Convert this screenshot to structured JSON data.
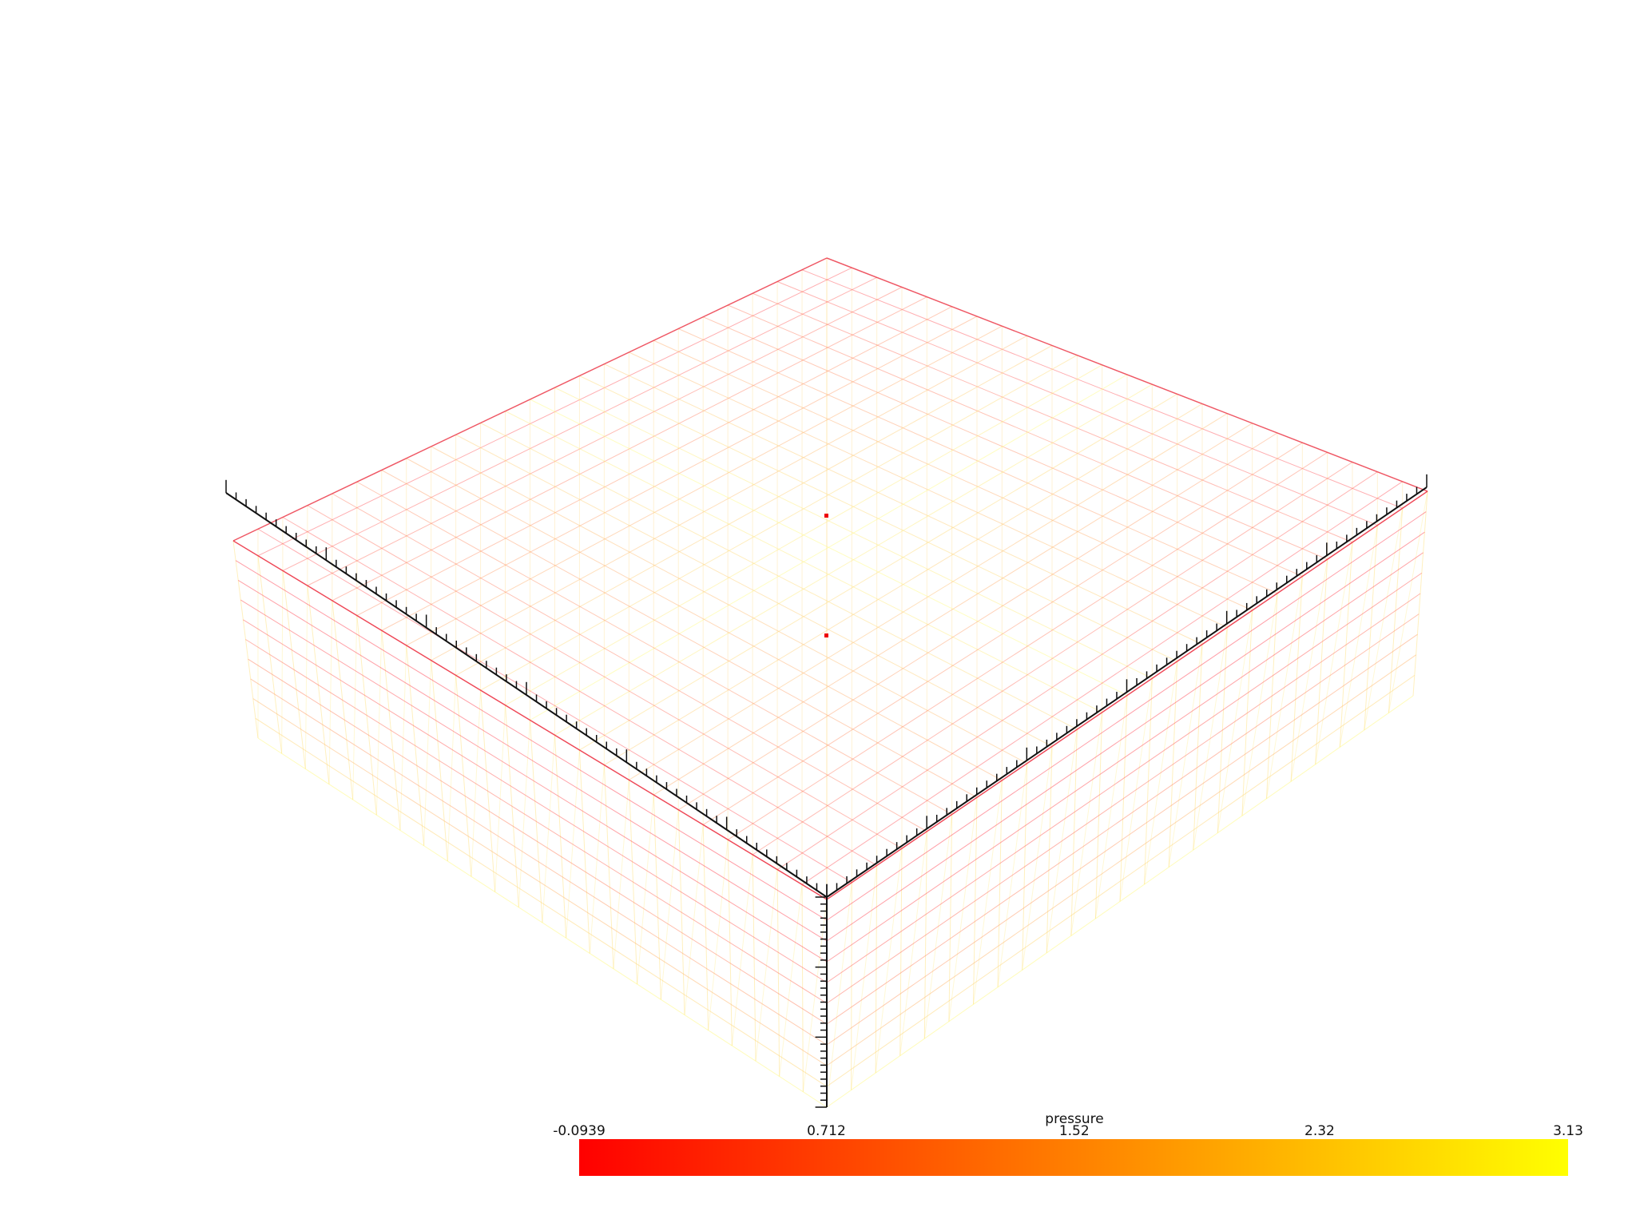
{
  "colorbar": {
    "title": "pressure",
    "range": [
      -0.0939,
      3.13
    ],
    "ticks": [
      -0.0939,
      0.712,
      1.52,
      2.32,
      3.13
    ],
    "colors": [
      "#ff0000",
      "#ffff00"
    ]
  }
}
